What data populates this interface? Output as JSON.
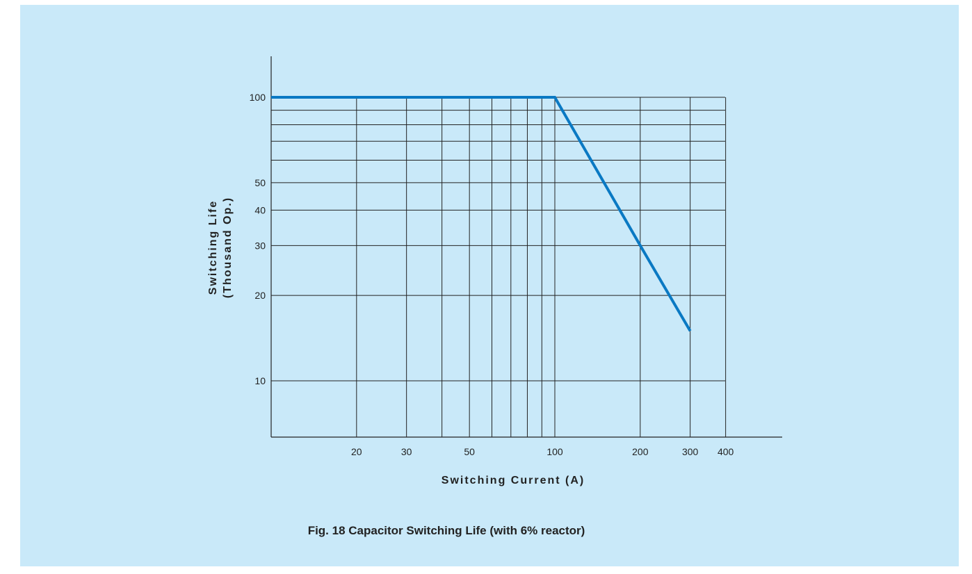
{
  "colors": {
    "background": "#c9e9f9",
    "grid": "#222222",
    "series": "#0a79c3"
  },
  "chart_data": {
    "type": "line",
    "caption": "Fig. 18  Capacitor Switching Life  (with 6% reactor)",
    "xlabel": "Switching Current (A)",
    "ylabel_lines": [
      "Switching Life",
      "(Thousand Op.)"
    ],
    "x_scale": "log",
    "y_scale": "log",
    "x_ticks": [
      20,
      30,
      50,
      100,
      200,
      300,
      400
    ],
    "x_tick_labels": [
      "20",
      "30",
      "50",
      "100",
      "200",
      "300",
      "400"
    ],
    "x_gridlines": [
      20,
      30,
      40,
      50,
      60,
      70,
      80,
      90,
      100,
      200,
      300,
      400
    ],
    "y_ticks": [
      10,
      20,
      30,
      40,
      50,
      100
    ],
    "y_tick_labels": [
      "10",
      "20",
      "30",
      "40",
      "50",
      "100"
    ],
    "y_gridlines": [
      10,
      20,
      30,
      40,
      50,
      60,
      70,
      80,
      90,
      100
    ],
    "xlim": [
      10,
      600
    ],
    "ylim": [
      6,
      140
    ],
    "grid": true,
    "series": [
      {
        "x": [
          10,
          100,
          200,
          300
        ],
        "y": [
          100,
          100,
          30,
          15
        ]
      }
    ]
  }
}
